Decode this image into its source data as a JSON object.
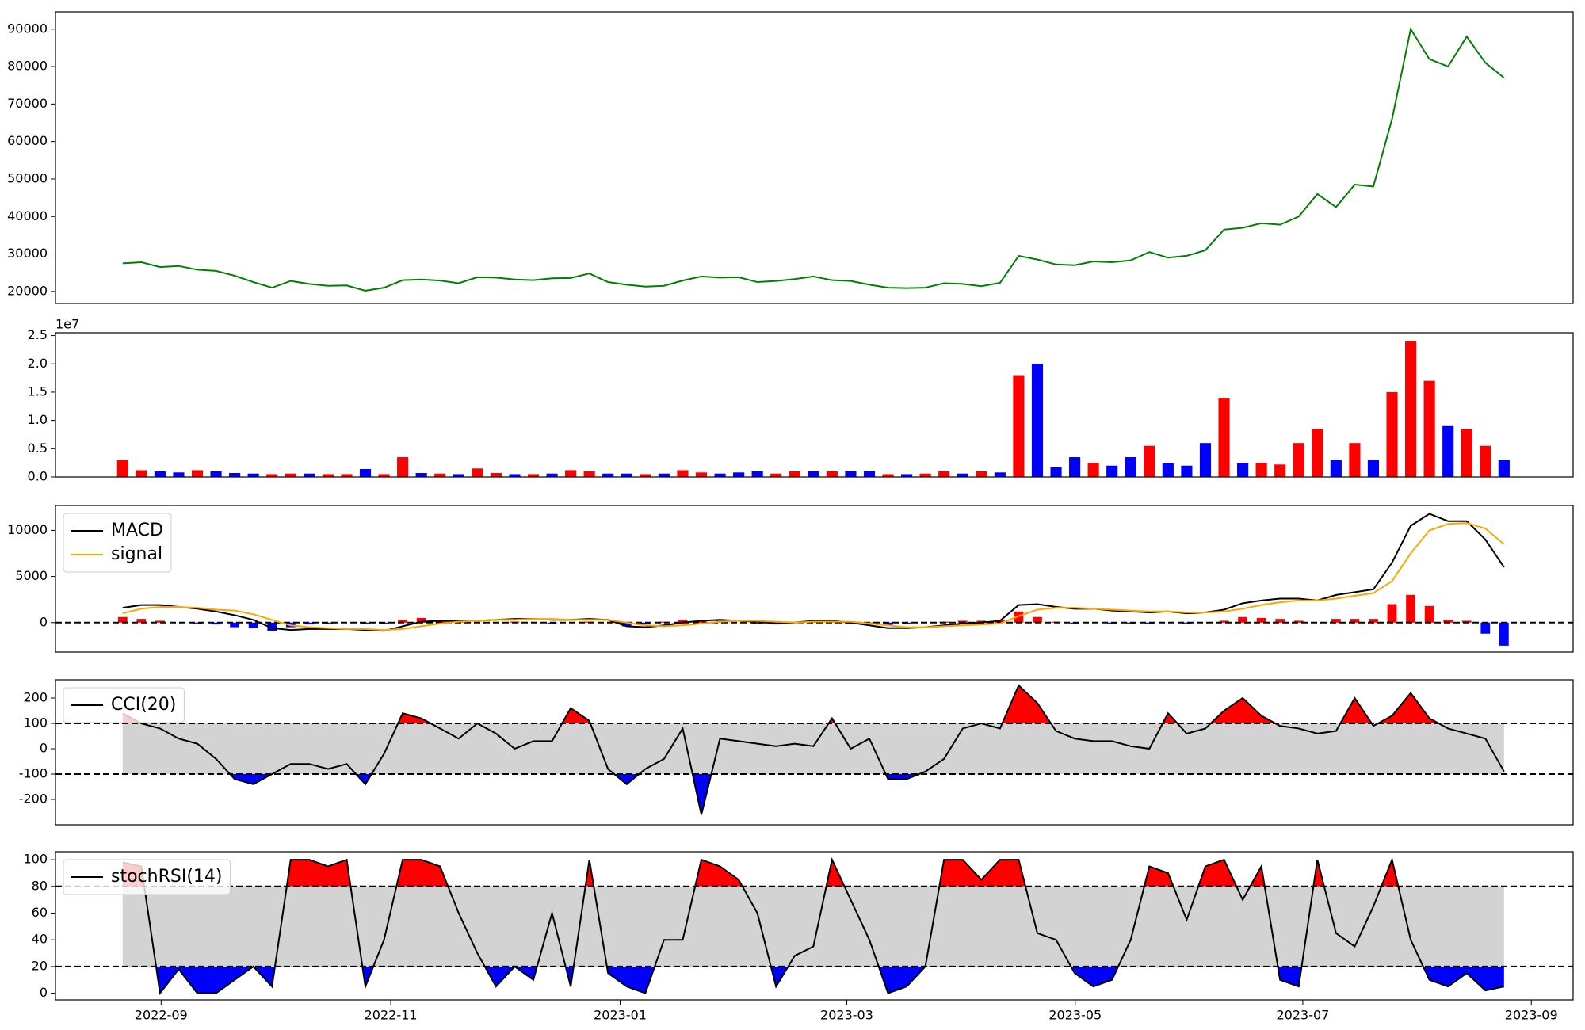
{
  "chart_data": [
    {
      "type": "line",
      "color": "green",
      "xlim": [
        -3.6,
        77.7
      ],
      "ylim": [
        16800,
        94600
      ],
      "yticks": [
        20000,
        30000,
        40000,
        50000,
        60000,
        70000,
        80000,
        90000
      ],
      "values": [
        27500,
        27800,
        26500,
        26800,
        25800,
        25500,
        24200,
        22500,
        21000,
        22800,
        22000,
        21500,
        21600,
        20200,
        21000,
        23000,
        23200,
        22900,
        22200,
        23800,
        23700,
        23200,
        23000,
        23500,
        23600,
        24800,
        22500,
        21800,
        21300,
        21500,
        22900,
        24000,
        23700,
        23800,
        22500,
        22800,
        23300,
        24000,
        23000,
        22800,
        21800,
        21000,
        20900,
        21000,
        22200,
        22000,
        21400,
        22300,
        29500,
        28500,
        27200,
        27000,
        28000,
        27800,
        28300,
        30500,
        29000,
        29500,
        31000,
        36500,
        37000,
        38200,
        37800,
        40000,
        46000,
        42500,
        48500,
        48000,
        66000,
        90000,
        82000,
        80000,
        88000,
        81000,
        77000
      ]
    },
    {
      "type": "bar",
      "xlim": [
        -3.6,
        77.7
      ],
      "ylim": [
        0,
        2.55
      ],
      "offset_label": "1e7",
      "yticks": [
        {
          "value": 0,
          "label": "0.0"
        },
        0.5,
        {
          "value": 1,
          "label": "1.0"
        },
        1.5,
        {
          "value": 2,
          "label": "2.0"
        },
        2.5
      ],
      "values": [
        0.3,
        0.12,
        0.1,
        0.08,
        0.12,
        0.1,
        0.07,
        0.06,
        0.05,
        0.06,
        0.06,
        0.05,
        0.05,
        0.14,
        0.05,
        0.35,
        0.07,
        0.06,
        0.05,
        0.15,
        0.07,
        0.05,
        0.05,
        0.06,
        0.12,
        0.1,
        0.06,
        0.06,
        0.05,
        0.06,
        0.12,
        0.08,
        0.06,
        0.08,
        0.1,
        0.06,
        0.1,
        0.1,
        0.1,
        0.1,
        0.1,
        0.05,
        0.05,
        0.06,
        0.1,
        0.06,
        0.1,
        0.08,
        1.8,
        2.0,
        0.17,
        0.35,
        0.25,
        0.2,
        0.35,
        0.55,
        0.25,
        0.2,
        0.6,
        1.4,
        0.25,
        0.25,
        0.22,
        0.6,
        0.85,
        0.3,
        0.6,
        0.3,
        1.5,
        2.4,
        1.7,
        0.9,
        0.85,
        0.55,
        0.3
      ],
      "colors": [
        "red",
        "red",
        "blue",
        "blue",
        "red",
        "blue",
        "blue",
        "blue",
        "red",
        "red",
        "blue",
        "red",
        "red",
        "blue",
        "red",
        "red",
        "blue",
        "red",
        "blue",
        "red",
        "red",
        "blue",
        "red",
        "blue",
        "red",
        "red",
        "blue",
        "blue",
        "red",
        "blue",
        "red",
        "red",
        "blue",
        "blue",
        "blue",
        "red",
        "red",
        "blue",
        "red",
        "blue",
        "blue",
        "red",
        "blue",
        "red",
        "red",
        "blue",
        "red",
        "blue",
        "red",
        "blue",
        "blue",
        "blue",
        "red",
        "blue",
        "blue",
        "red",
        "blue",
        "blue",
        "blue",
        "red",
        "blue",
        "red",
        "red",
        "red",
        "red",
        "blue",
        "red",
        "blue",
        "red",
        "red",
        "red",
        "blue",
        "red",
        "red",
        "blue"
      ]
    },
    {
      "type": "macd",
      "xlim": [
        -3.6,
        77.7
      ],
      "ylim": [
        -3200,
        12700
      ],
      "yticks": [
        0,
        5000,
        10000
      ],
      "hline": 0,
      "legend": "upper left",
      "series": [
        {
          "name": "MACD",
          "color": "black",
          "values": [
            1600,
            1900,
            1900,
            1700,
            1500,
            1200,
            800,
            300,
            -600,
            -800,
            -700,
            -700,
            -700,
            -800,
            -900,
            -400,
            100,
            200,
            200,
            200,
            300,
            400,
            400,
            300,
            300,
            400,
            300,
            -400,
            -500,
            -300,
            0,
            200,
            300,
            200,
            100,
            -100,
            0,
            200,
            200,
            0,
            -300,
            -600,
            -600,
            -500,
            -300,
            -100,
            0,
            200,
            1900,
            2000,
            1700,
            1500,
            1500,
            1300,
            1200,
            1100,
            1200,
            1000,
            1100,
            1400,
            2100,
            2400,
            2600,
            2600,
            2400,
            3000,
            3300,
            3600,
            6500,
            10500,
            11800,
            11000,
            11000,
            9000,
            6000
          ]
        },
        {
          "name": "signal",
          "color": "orange",
          "values": [
            1000,
            1500,
            1700,
            1700,
            1600,
            1400,
            1300,
            900,
            300,
            -300,
            -500,
            -600,
            -700,
            -700,
            -800,
            -700,
            -400,
            -100,
            100,
            200,
            300,
            300,
            400,
            400,
            300,
            300,
            300,
            0,
            -300,
            -400,
            -300,
            -100,
            100,
            200,
            200,
            100,
            0,
            100,
            100,
            100,
            -100,
            -300,
            -500,
            -500,
            -400,
            -300,
            -200,
            -100,
            700,
            1400,
            1600,
            1600,
            1500,
            1400,
            1300,
            1200,
            1200,
            1100,
            1100,
            1200,
            1500,
            1900,
            2200,
            2400,
            2400,
            2600,
            2900,
            3200,
            4500,
            7500,
            10000,
            10700,
            10800,
            10200,
            8500
          ]
        }
      ],
      "histogram": {
        "color": "red",
        "negative_color": "blue",
        "values": [
          600,
          400,
          200,
          0,
          -100,
          -200,
          -500,
          -600,
          -900,
          -500,
          -200,
          -100,
          0,
          -100,
          -100,
          300,
          500,
          300,
          100,
          0,
          0,
          100,
          0,
          -100,
          0,
          100,
          0,
          -400,
          -200,
          100,
          300,
          300,
          200,
          0,
          -100,
          -200,
          0,
          100,
          100,
          -100,
          -200,
          -300,
          -100,
          0,
          100,
          200,
          200,
          300,
          1200,
          600,
          100,
          -100,
          0,
          -100,
          -100,
          -100,
          0,
          -100,
          0,
          200,
          600,
          500,
          400,
          200,
          0,
          400,
          400,
          400,
          2000,
          3000,
          1800,
          300,
          200,
          -1200,
          -2500
        ]
      }
    },
    {
      "type": "band",
      "xlim": [
        -3.6,
        77.7
      ],
      "ylim": [
        -300,
        272
      ],
      "yticks": [
        -200,
        -100,
        0,
        100,
        200
      ],
      "thresholds": [
        -100,
        100
      ],
      "band_color": "lightgray",
      "upper_color": "red",
      "lower_color": "blue",
      "legend": "upper left",
      "series": [
        {
          "name": "CCI(20)",
          "color": "black",
          "values": [
            140,
            100,
            80,
            40,
            20,
            -40,
            -120,
            -140,
            -100,
            -60,
            -60,
            -80,
            -60,
            -140,
            -20,
            140,
            120,
            80,
            40,
            100,
            60,
            0,
            30,
            30,
            160,
            110,
            -80,
            -140,
            -80,
            -40,
            80,
            -260,
            40,
            30,
            20,
            10,
            20,
            10,
            120,
            0,
            40,
            -120,
            -120,
            -90,
            -40,
            80,
            100,
            80,
            250,
            180,
            70,
            40,
            30,
            30,
            10,
            0,
            140,
            60,
            80,
            150,
            200,
            130,
            90,
            80,
            60,
            70,
            200,
            90,
            130,
            220,
            120,
            80,
            60,
            40,
            -90
          ]
        }
      ]
    },
    {
      "type": "band",
      "xlim": [
        -3.6,
        77.7
      ],
      "ylim": [
        -5,
        106
      ],
      "yticks": [
        0,
        20,
        40,
        60,
        80,
        100
      ],
      "thresholds": [
        20,
        80
      ],
      "band_color": "lightgray",
      "upper_color": "red",
      "lower_color": "blue",
      "legend": "upper left",
      "xticks": [
        {
          "value": 2.06,
          "label": "2022-09"
        },
        {
          "value": 14.36,
          "label": "2022-11"
        },
        {
          "value": 26.65,
          "label": "2023-01"
        },
        {
          "value": 38.79,
          "label": "2023-03"
        },
        {
          "value": 51.03,
          "label": "2023-05"
        },
        {
          "value": 63.22,
          "label": "2023-07"
        },
        {
          "value": 75.46,
          "label": "2023-09"
        }
      ],
      "series": [
        {
          "name": "stochRSI(14)",
          "color": "black",
          "values": [
            98,
            95,
            0,
            18,
            0,
            0,
            10,
            20,
            5,
            100,
            100,
            95,
            100,
            5,
            40,
            100,
            100,
            95,
            60,
            30,
            5,
            20,
            10,
            60,
            5,
            100,
            15,
            5,
            0,
            40,
            40,
            100,
            95,
            85,
            60,
            5,
            28,
            35,
            100,
            70,
            40,
            0,
            5,
            20,
            100,
            100,
            85,
            100,
            100,
            45,
            40,
            15,
            5,
            10,
            40,
            95,
            90,
            55,
            95,
            100,
            70,
            95,
            10,
            5,
            100,
            45,
            35,
            65,
            100,
            40,
            10,
            5,
            15,
            2,
            5
          ]
        }
      ]
    }
  ]
}
